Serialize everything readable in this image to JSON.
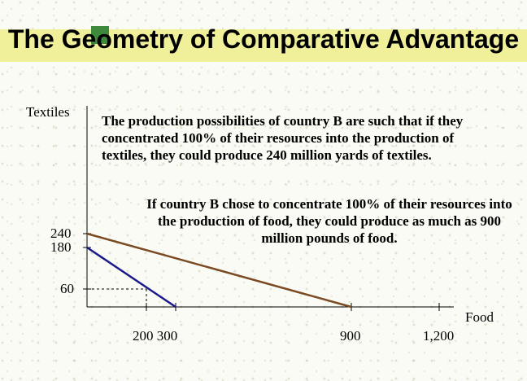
{
  "title": "The Geometry of Comparative Advantage",
  "y_axis_label": "Textiles",
  "x_axis_label": "Food",
  "paragraph_1": "The production possibilities of country B are such that if they concentrated 100% of their resources into the production of textiles, they could produce 240 million yards of textiles.",
  "paragraph_2": "If country B chose to concentrate 100% of their resources into the production of food, they could produce as much as 900 million pounds of food.",
  "y_ticks": [
    "240",
    "180",
    "60"
  ],
  "x_ticks": [
    "200 300",
    "900",
    "1,200"
  ],
  "colors": {
    "ppf_country_b": "#7a4a22",
    "ppf_other": "#1a1a8c",
    "title_band": "#f0f09a",
    "title_accent": "#3d8a3d"
  },
  "chart_data": {
    "type": "line",
    "title": "The Geometry of Comparative Advantage",
    "xlabel": "Food",
    "ylabel": "Textiles",
    "x_ticks": [
      200,
      300,
      900,
      1200
    ],
    "y_ticks": [
      60,
      180,
      240
    ],
    "series": [
      {
        "x": [
          0,
          900
        ],
        "y": [
          240,
          0
        ],
        "color": "#7a4a22"
      },
      {
        "x": [
          0,
          300
        ],
        "y": [
          180,
          0
        ],
        "color": "#1a1a8c"
      }
    ],
    "guides": [
      {
        "x": [
          0,
          200
        ],
        "y": [
          60,
          60
        ]
      },
      {
        "x": [
          200,
          200
        ],
        "y": [
          60,
          0
        ]
      }
    ]
  }
}
